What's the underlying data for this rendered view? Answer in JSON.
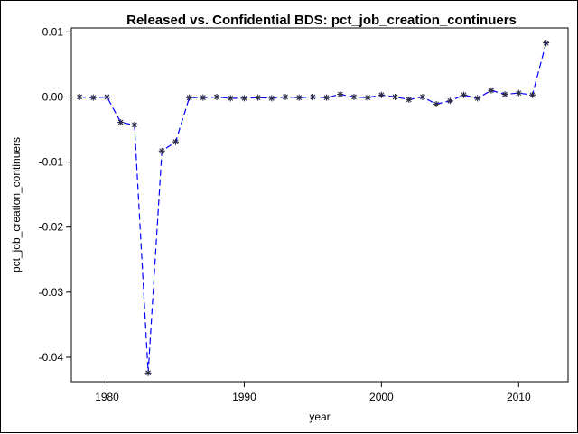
{
  "chart_data": {
    "type": "line",
    "title": "Released vs. Confidential BDS: pct_job_creation_continuers",
    "xlabel": "year",
    "ylabel": "pct_job_creation_continuers",
    "xlim": [
      1977.4,
      2013.6
    ],
    "ylim": [
      -0.04375,
      0.0106
    ],
    "x_ticks": [
      1980,
      1990,
      2000,
      2010
    ],
    "x_tick_labels": [
      "1980",
      "1990",
      "2000",
      "2010"
    ],
    "y_ticks": [
      0.01,
      0.0,
      -0.01,
      -0.02,
      -0.03,
      -0.04
    ],
    "y_tick_labels": [
      "0.01",
      "0.00",
      "-0.01",
      "-0.02",
      "-0.03",
      "-0.04"
    ],
    "grid": false,
    "legend": "none",
    "series": [
      {
        "marker": "asterisk",
        "line_style": "dashed",
        "color": "#0000ff",
        "marker_color": "#2b2b4a",
        "x": [
          1978,
          1979,
          1980,
          1981,
          1982,
          1983,
          1984,
          1985,
          1986,
          1987,
          1988,
          1989,
          1990,
          1991,
          1992,
          1993,
          1994,
          1995,
          1996,
          1997,
          1998,
          1999,
          2000,
          2001,
          2002,
          2003,
          2004,
          2005,
          2006,
          2007,
          2008,
          2009,
          2010,
          2011,
          2012
        ],
        "y": [
          0.0,
          -0.0001,
          0.0,
          -0.0039,
          -0.0043,
          -0.0424,
          -0.0083,
          -0.0069,
          -0.0001,
          -0.0001,
          0.0,
          -0.0002,
          -0.0002,
          -0.0001,
          -0.0002,
          0.0,
          -0.0001,
          0.0,
          -0.0001,
          0.0004,
          0.0,
          -0.0001,
          0.0003,
          0.0,
          -0.0004,
          0.0,
          -0.0011,
          -0.0006,
          0.0003,
          -0.0002,
          0.001,
          0.0004,
          0.0006,
          0.0003,
          0.0083
        ]
      }
    ]
  }
}
